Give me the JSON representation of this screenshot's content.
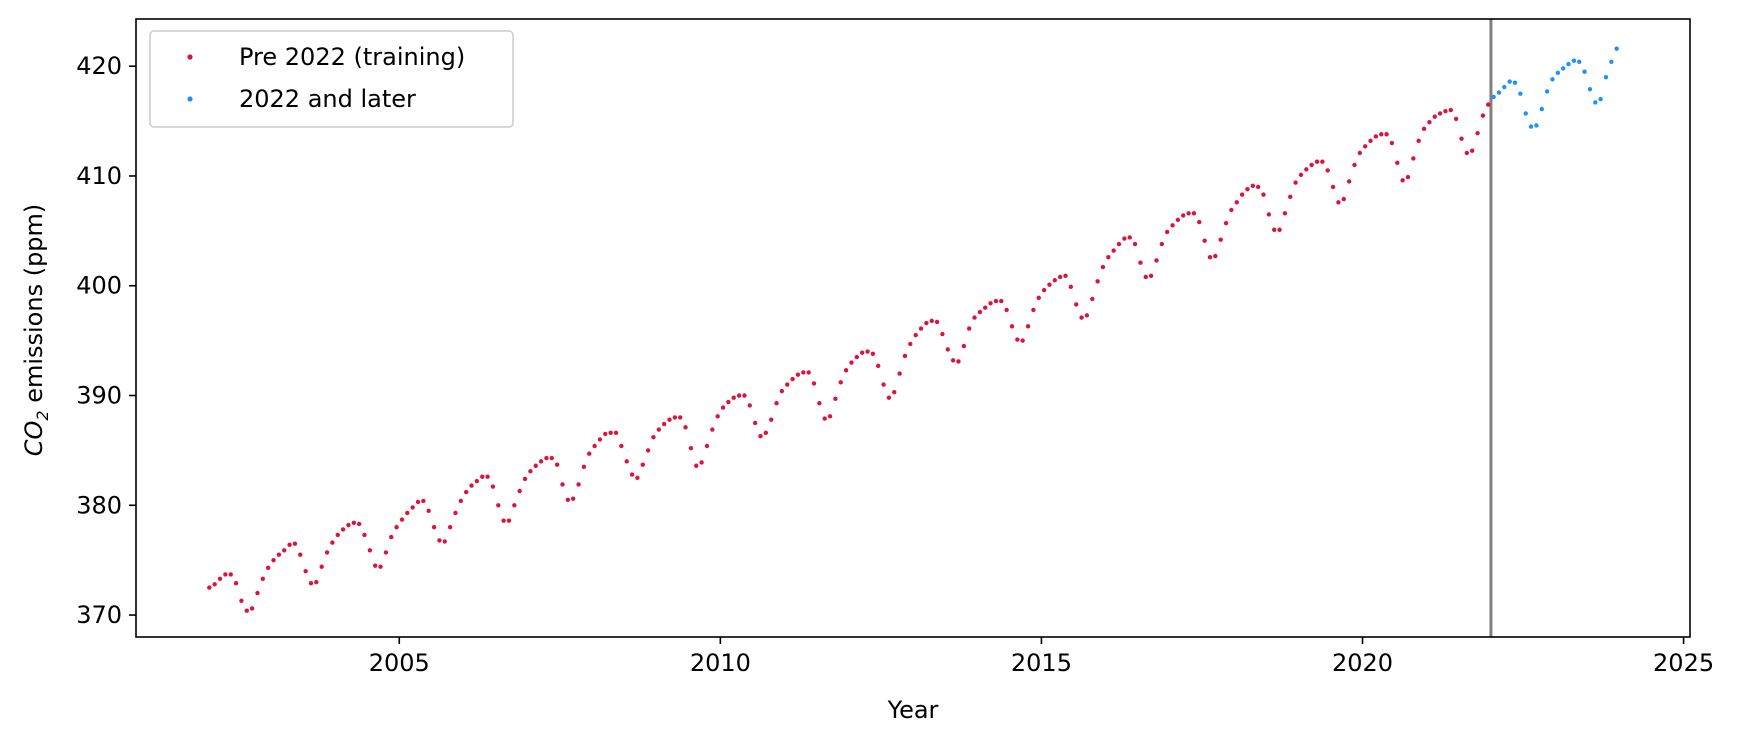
{
  "chart_data": {
    "type": "scatter",
    "xlabel": "Year",
    "ylabel": {
      "prefix": "CO",
      "subscript": "2",
      "suffix": " emissions (ppm)"
    },
    "xlim": [
      2000.9,
      2025.1
    ],
    "ylim": [
      368,
      424.3
    ],
    "xticks": [
      2005,
      2010,
      2015,
      2020,
      2025
    ],
    "yticks": [
      370,
      380,
      390,
      400,
      410,
      420
    ],
    "vline": {
      "x": 2022.0,
      "color": "#808080"
    },
    "legend": {
      "placement": "top-left"
    },
    "series": [
      {
        "name": "Pre 2022 (training)",
        "color": "#DC143C",
        "x": [
          2002.042,
          2002.125,
          2002.208,
          2002.292,
          2002.375,
          2002.458,
          2002.542,
          2002.625,
          2002.708,
          2002.792,
          2002.875,
          2002.958,
          2003.042,
          2003.125,
          2003.208,
          2003.292,
          2003.375,
          2003.458,
          2003.542,
          2003.625,
          2003.708,
          2003.792,
          2003.875,
          2003.958,
          2004.042,
          2004.125,
          2004.208,
          2004.292,
          2004.375,
          2004.458,
          2004.542,
          2004.625,
          2004.708,
          2004.792,
          2004.875,
          2004.958,
          2005.042,
          2005.125,
          2005.208,
          2005.292,
          2005.375,
          2005.458,
          2005.542,
          2005.625,
          2005.708,
          2005.792,
          2005.875,
          2005.958,
          2006.042,
          2006.125,
          2006.208,
          2006.292,
          2006.375,
          2006.458,
          2006.542,
          2006.625,
          2006.708,
          2006.792,
          2006.875,
          2006.958,
          2007.042,
          2007.125,
          2007.208,
          2007.292,
          2007.375,
          2007.458,
          2007.542,
          2007.625,
          2007.708,
          2007.792,
          2007.875,
          2007.958,
          2008.042,
          2008.125,
          2008.208,
          2008.292,
          2008.375,
          2008.458,
          2008.542,
          2008.625,
          2008.708,
          2008.792,
          2008.875,
          2008.958,
          2009.042,
          2009.125,
          2009.208,
          2009.292,
          2009.375,
          2009.458,
          2009.542,
          2009.625,
          2009.708,
          2009.792,
          2009.875,
          2009.958,
          2010.042,
          2010.125,
          2010.208,
          2010.292,
          2010.375,
          2010.458,
          2010.542,
          2010.625,
          2010.708,
          2010.792,
          2010.875,
          2010.958,
          2011.042,
          2011.125,
          2011.208,
          2011.292,
          2011.375,
          2011.458,
          2011.542,
          2011.625,
          2011.708,
          2011.792,
          2011.875,
          2011.958,
          2012.042,
          2012.125,
          2012.208,
          2012.292,
          2012.375,
          2012.458,
          2012.542,
          2012.625,
          2012.708,
          2012.792,
          2012.875,
          2012.958,
          2013.042,
          2013.125,
          2013.208,
          2013.292,
          2013.375,
          2013.458,
          2013.542,
          2013.625,
          2013.708,
          2013.792,
          2013.875,
          2013.958,
          2014.042,
          2014.125,
          2014.208,
          2014.292,
          2014.375,
          2014.458,
          2014.542,
          2014.625,
          2014.708,
          2014.792,
          2014.875,
          2014.958,
          2015.042,
          2015.125,
          2015.208,
          2015.292,
          2015.375,
          2015.458,
          2015.542,
          2015.625,
          2015.708,
          2015.792,
          2015.875,
          2015.958,
          2016.042,
          2016.125,
          2016.208,
          2016.292,
          2016.375,
          2016.458,
          2016.542,
          2016.625,
          2016.708,
          2016.792,
          2016.875,
          2016.958,
          2017.042,
          2017.125,
          2017.208,
          2017.292,
          2017.375,
          2017.458,
          2017.542,
          2017.625,
          2017.708,
          2017.792,
          2017.875,
          2017.958,
          2018.042,
          2018.125,
          2018.208,
          2018.292,
          2018.375,
          2018.458,
          2018.542,
          2018.625,
          2018.708,
          2018.792,
          2018.875,
          2018.958,
          2019.042,
          2019.125,
          2019.208,
          2019.292,
          2019.375,
          2019.458,
          2019.542,
          2019.625,
          2019.708,
          2019.792,
          2019.875,
          2019.958,
          2020.042,
          2020.125,
          2020.208,
          2020.292,
          2020.375,
          2020.458,
          2020.542,
          2020.625,
          2020.708,
          2020.792,
          2020.875,
          2020.958,
          2021.042,
          2021.125,
          2021.208,
          2021.292,
          2021.375,
          2021.458,
          2021.542,
          2021.625,
          2021.708,
          2021.792,
          2021.875,
          2021.958
        ],
        "y": [
          372.5,
          372.8,
          373.3,
          373.7,
          373.7,
          372.9,
          371.3,
          370.4,
          370.6,
          372.0,
          373.3,
          374.3,
          375.0,
          375.5,
          375.9,
          376.4,
          376.5,
          375.5,
          374.0,
          372.9,
          373.0,
          374.4,
          375.7,
          376.6,
          377.3,
          377.8,
          378.2,
          378.4,
          378.3,
          377.3,
          375.9,
          374.5,
          374.4,
          375.7,
          377.1,
          378.0,
          378.7,
          379.3,
          379.8,
          380.3,
          380.4,
          379.5,
          378.0,
          376.8,
          376.7,
          378.0,
          379.3,
          380.4,
          381.2,
          381.8,
          382.2,
          382.6,
          382.6,
          381.7,
          380.0,
          378.6,
          378.6,
          380.0,
          381.3,
          382.4,
          383.1,
          383.6,
          384.0,
          384.3,
          384.3,
          383.7,
          381.9,
          380.5,
          380.6,
          381.9,
          383.5,
          384.7,
          385.4,
          386.0,
          386.5,
          386.6,
          386.6,
          385.4,
          384.0,
          382.8,
          382.5,
          383.7,
          385.0,
          386.2,
          386.9,
          387.4,
          387.8,
          388.0,
          388.0,
          387.1,
          385.2,
          383.6,
          383.9,
          385.4,
          386.9,
          388.1,
          388.9,
          389.4,
          389.8,
          390.0,
          390.0,
          389.1,
          387.5,
          386.3,
          386.6,
          387.8,
          389.3,
          390.4,
          391.0,
          391.5,
          391.9,
          392.1,
          392.1,
          391.1,
          389.3,
          387.9,
          388.1,
          389.7,
          391.2,
          392.3,
          393.0,
          393.5,
          393.9,
          394.0,
          393.8,
          392.7,
          391.0,
          389.8,
          390.3,
          392.0,
          393.6,
          394.7,
          395.5,
          396.1,
          396.6,
          396.8,
          396.7,
          395.6,
          394.2,
          393.2,
          393.1,
          394.5,
          396.1,
          397.1,
          397.6,
          398.0,
          398.4,
          398.6,
          398.6,
          397.8,
          396.3,
          395.1,
          395.0,
          396.3,
          397.8,
          398.9,
          399.6,
          400.1,
          400.5,
          400.8,
          400.9,
          399.9,
          398.3,
          397.1,
          397.3,
          398.8,
          400.4,
          401.7,
          402.6,
          403.2,
          403.8,
          404.3,
          404.4,
          403.8,
          402.1,
          400.8,
          400.9,
          402.3,
          403.8,
          404.9,
          405.5,
          406.0,
          406.4,
          406.6,
          406.6,
          405.8,
          404.1,
          402.6,
          402.7,
          404.2,
          405.7,
          406.9,
          407.6,
          408.3,
          408.8,
          409.1,
          409.0,
          408.3,
          406.5,
          405.1,
          405.1,
          406.6,
          408.1,
          409.4,
          410.1,
          410.6,
          411.0,
          411.3,
          411.3,
          410.5,
          409.0,
          407.6,
          407.9,
          409.5,
          411.0,
          412.1,
          412.7,
          413.2,
          413.6,
          413.8,
          413.8,
          413.0,
          411.2,
          409.6,
          409.9,
          411.6,
          413.2,
          414.3,
          414.9,
          415.4,
          415.7,
          415.9,
          416.0,
          415.2,
          413.4,
          412.1,
          412.3,
          413.9,
          415.5,
          416.5
        ]
      },
      {
        "name": "2022 and later",
        "color": "#1E90FF",
        "x": [
          2022.042,
          2022.125,
          2022.208,
          2022.292,
          2022.375,
          2022.458,
          2022.542,
          2022.625,
          2022.708,
          2022.792,
          2022.875,
          2022.958,
          2023.042,
          2023.125,
          2023.208,
          2023.292,
          2023.375,
          2023.458,
          2023.542,
          2023.625,
          2023.708,
          2023.792,
          2023.875,
          2023.958
        ],
        "y": [
          417.2,
          417.6,
          418.1,
          418.6,
          418.5,
          417.5,
          415.7,
          414.5,
          414.6,
          416.1,
          417.7,
          418.8,
          419.4,
          419.8,
          420.2,
          420.5,
          420.4,
          419.5,
          417.9,
          416.7,
          417.0,
          419.0,
          420.4,
          421.6
        ]
      }
    ]
  }
}
